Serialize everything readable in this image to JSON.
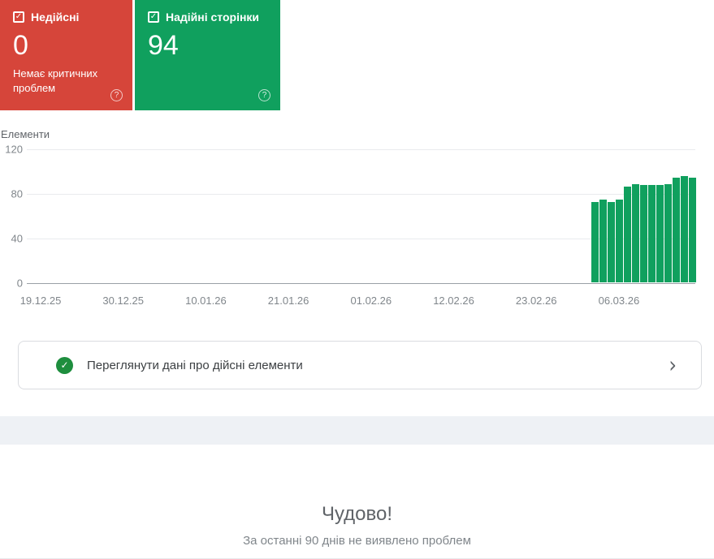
{
  "colors": {
    "invalid_red": "#d6453a",
    "valid_green": "#10a05e",
    "review_check_green": "#1e8e3e"
  },
  "icons": {
    "checkbox_check": "✓",
    "help": "?",
    "review_check": "✓",
    "chevron_right": "›"
  },
  "cards": {
    "invalid": {
      "label": "Недійсні",
      "value": "0",
      "subtitle": "Немає критичних проблем"
    },
    "valid": {
      "label": "Надійні сторінки",
      "value": "94"
    }
  },
  "chart_data": {
    "type": "bar",
    "title": "Елементи",
    "ylabel": "Елементи",
    "xlabel": "",
    "ylim": [
      0,
      120
    ],
    "yticks": [
      0,
      40,
      80,
      120
    ],
    "grid": true,
    "legend": false,
    "x_tick_labels": [
      "19.12.25",
      "30.12.25",
      "10.01.26",
      "21.01.26",
      "01.02.26",
      "12.02.26",
      "23.02.26",
      "06.03.26"
    ],
    "series": [
      {
        "name": "Надійні сторінки",
        "color": "#10a05e",
        "values": [
          72,
          74,
          72,
          74,
          86,
          88,
          87,
          87,
          87,
          88,
          94,
          95,
          94
        ]
      }
    ],
    "note": "bars occupy only the most recent dates at the right side of the 90-day range"
  },
  "review_card": {
    "label": "Переглянути дані про дійсні елементи"
  },
  "footer": {
    "title": "Чудово!",
    "subtitle": "За останні 90 днів не виявлено проблем"
  }
}
